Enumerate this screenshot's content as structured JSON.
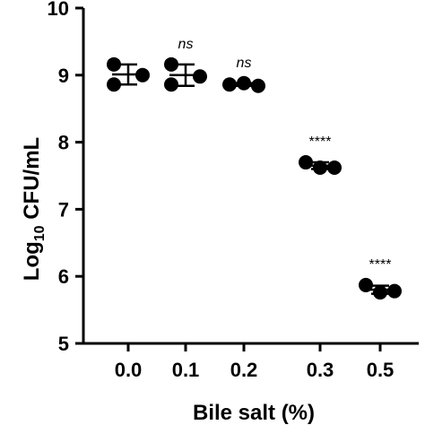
{
  "chart_data": {
    "type": "scatter",
    "title": "",
    "xlabel": "Bile salt (%)",
    "ylabel": {
      "prefix": "Log",
      "subscript": "10",
      "suffix": " CFU/mL"
    },
    "ylim": [
      5,
      10
    ],
    "yticks": [
      "5",
      "6",
      "7",
      "8",
      "9",
      "10"
    ],
    "categories": [
      "0.0",
      "0.1",
      "0.2",
      "0.3",
      "0.5"
    ],
    "points": [
      [
        9.16,
        8.86,
        9.0
      ],
      [
        9.16,
        8.86,
        8.98
      ],
      [
        8.86,
        8.88,
        8.84
      ],
      [
        7.7,
        7.62,
        7.62
      ],
      [
        5.87,
        5.76,
        5.78
      ]
    ],
    "mean": [
      9.01,
      9.0,
      8.86,
      7.65,
      5.8
    ],
    "error": [
      0.15,
      0.16,
      0.02,
      0.05,
      0.06
    ],
    "significance": [
      "",
      "ns",
      "ns",
      "****",
      "****"
    ],
    "grid": false,
    "legend": "none"
  }
}
